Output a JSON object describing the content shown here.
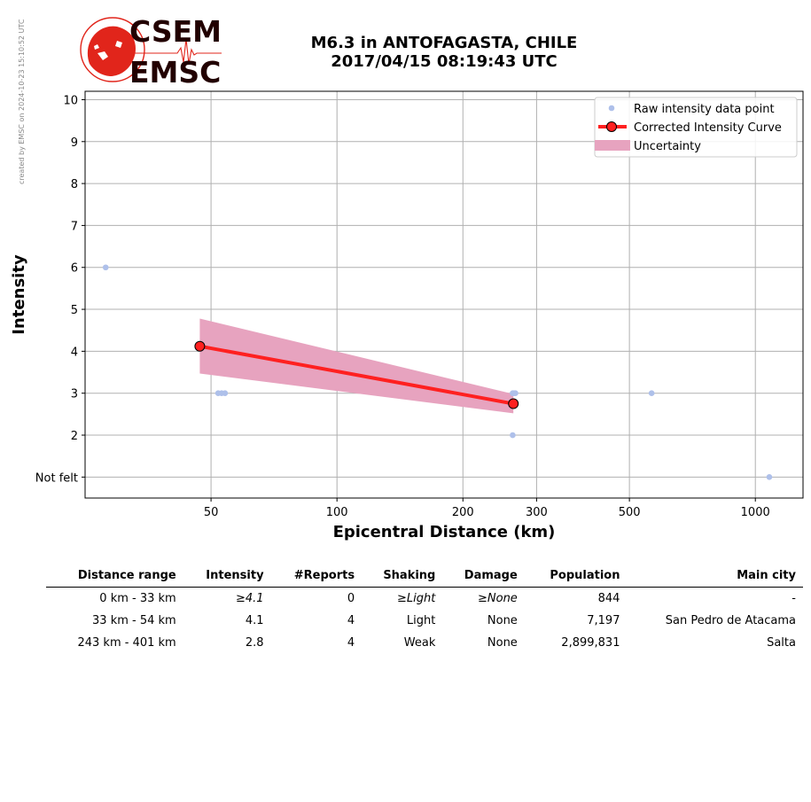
{
  "watermark": "created by EMSC on 2024-10-23 15:10:52 UTC",
  "logo": {
    "line1": "CSEM",
    "line2": "EMSC"
  },
  "title": {
    "line1": "M6.3 in ANTOFAGASTA, CHILE",
    "line2": "2017/04/15 08:19:43 UTC"
  },
  "colors": {
    "raw_points": "#aec0ea",
    "curve": "#ff2020",
    "uncertainty": "#e7a3bf",
    "logo_red": "#e1251b",
    "logo_dark": "#220000"
  },
  "chart_data": {
    "type": "scatter",
    "xlabel": "Epicentral Distance (km)",
    "ylabel": "Intensity",
    "xscale": "log",
    "xlim": [
      25,
      1300
    ],
    "ylim": [
      0.5,
      10.2
    ],
    "xticks": [
      50,
      100,
      200,
      300,
      500,
      1000
    ],
    "xtick_labels": [
      "50",
      "100",
      "200",
      "300",
      "500",
      "1000"
    ],
    "yticks": [
      1,
      2,
      3,
      4,
      5,
      6,
      7,
      8,
      9,
      10
    ],
    "ytick_labels": [
      "Not felt",
      "2",
      "3",
      "4",
      "5",
      "6",
      "7",
      "8",
      "9",
      "10"
    ],
    "grid": true,
    "legend_position": "top-right",
    "series": [
      {
        "name": "Raw intensity data point",
        "kind": "points",
        "x": [
          28,
          52,
          53,
          54,
          263,
          265,
          267,
          263,
          565,
          1080
        ],
        "y": [
          6,
          3,
          3,
          3,
          3,
          3,
          3,
          2,
          3,
          1
        ]
      },
      {
        "name": "Corrected Intensity Curve",
        "kind": "line",
        "x": [
          47,
          264
        ],
        "y": [
          4.12,
          2.75
        ]
      },
      {
        "name": "Uncertainty",
        "kind": "band",
        "x": [
          47,
          264
        ],
        "upper": [
          4.78,
          2.98
        ],
        "lower": [
          3.47,
          2.52
        ]
      }
    ]
  },
  "table": {
    "headers": [
      "Distance range",
      "Intensity",
      "#Reports",
      "Shaking",
      "Damage",
      "Population",
      "Main city"
    ],
    "rows": [
      [
        "0 km -   33 km",
        "≥4.1",
        "0",
        "≥Light",
        "≥None",
        "844",
        "-"
      ],
      [
        "33 km -   54 km",
        "4.1",
        "4",
        "Light",
        "None",
        "7,197",
        "San Pedro de Atacama"
      ],
      [
        "243 km -  401 km",
        "2.8",
        "4",
        "Weak",
        "None",
        "2,899,831",
        "Salta"
      ]
    ]
  }
}
